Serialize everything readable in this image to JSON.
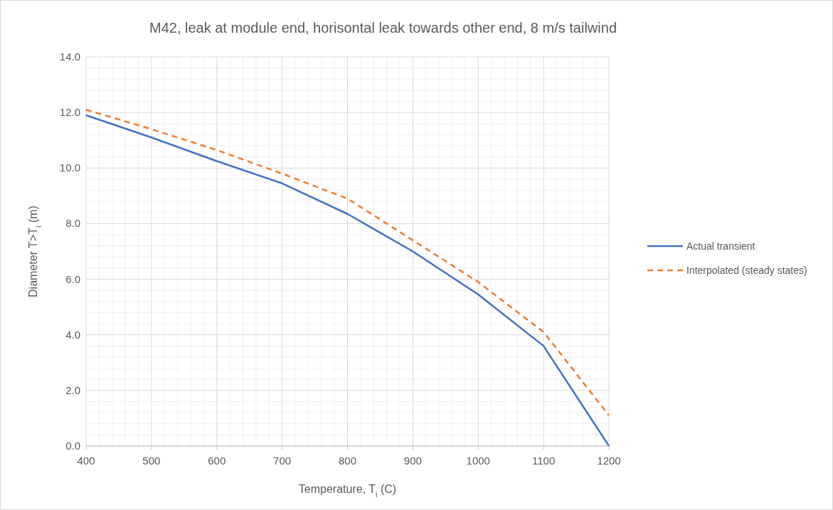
{
  "chart_data": {
    "type": "line",
    "title": "M42, leak at module end, horisontal leak towards other end, 8 m/s tailwind",
    "xlabel": "Temperature, T$_{i}$ (C)",
    "ylabel": "Diameter T>T$_{i}$ (m)",
    "x": [
      400,
      500,
      600,
      700,
      800,
      900,
      1000,
      1100,
      1200
    ],
    "series": [
      {
        "name": "Actual transient",
        "color": "#4472c4",
        "line_style": "solid",
        "values": [
          11.9,
          11.1,
          10.25,
          9.45,
          8.35,
          7.0,
          5.45,
          3.6,
          0.0
        ]
      },
      {
        "name": "Interpolated (steady states)",
        "color": "#ed7d31",
        "line_style": "dashed",
        "values": [
          12.1,
          11.4,
          10.65,
          9.8,
          8.9,
          7.4,
          5.9,
          4.1,
          1.1
        ]
      }
    ],
    "xlim": [
      400,
      1200
    ],
    "xticks": [
      400,
      500,
      600,
      700,
      800,
      900,
      1000,
      1100,
      1200
    ],
    "ylim": [
      0,
      14
    ],
    "yticks": [
      {
        "value": 0,
        "label": "0.0"
      },
      {
        "value": 2,
        "label": "2.0"
      },
      {
        "value": 4,
        "label": "4.0"
      },
      {
        "value": 6,
        "label": "6.0"
      },
      {
        "value": 8,
        "label": "8.0"
      },
      {
        "value": 10,
        "label": "10.0"
      },
      {
        "value": 12,
        "label": "12.0"
      },
      {
        "value": 14,
        "label": "14.0"
      }
    ],
    "grid": true,
    "legend": "right",
    "marker": "none"
  }
}
